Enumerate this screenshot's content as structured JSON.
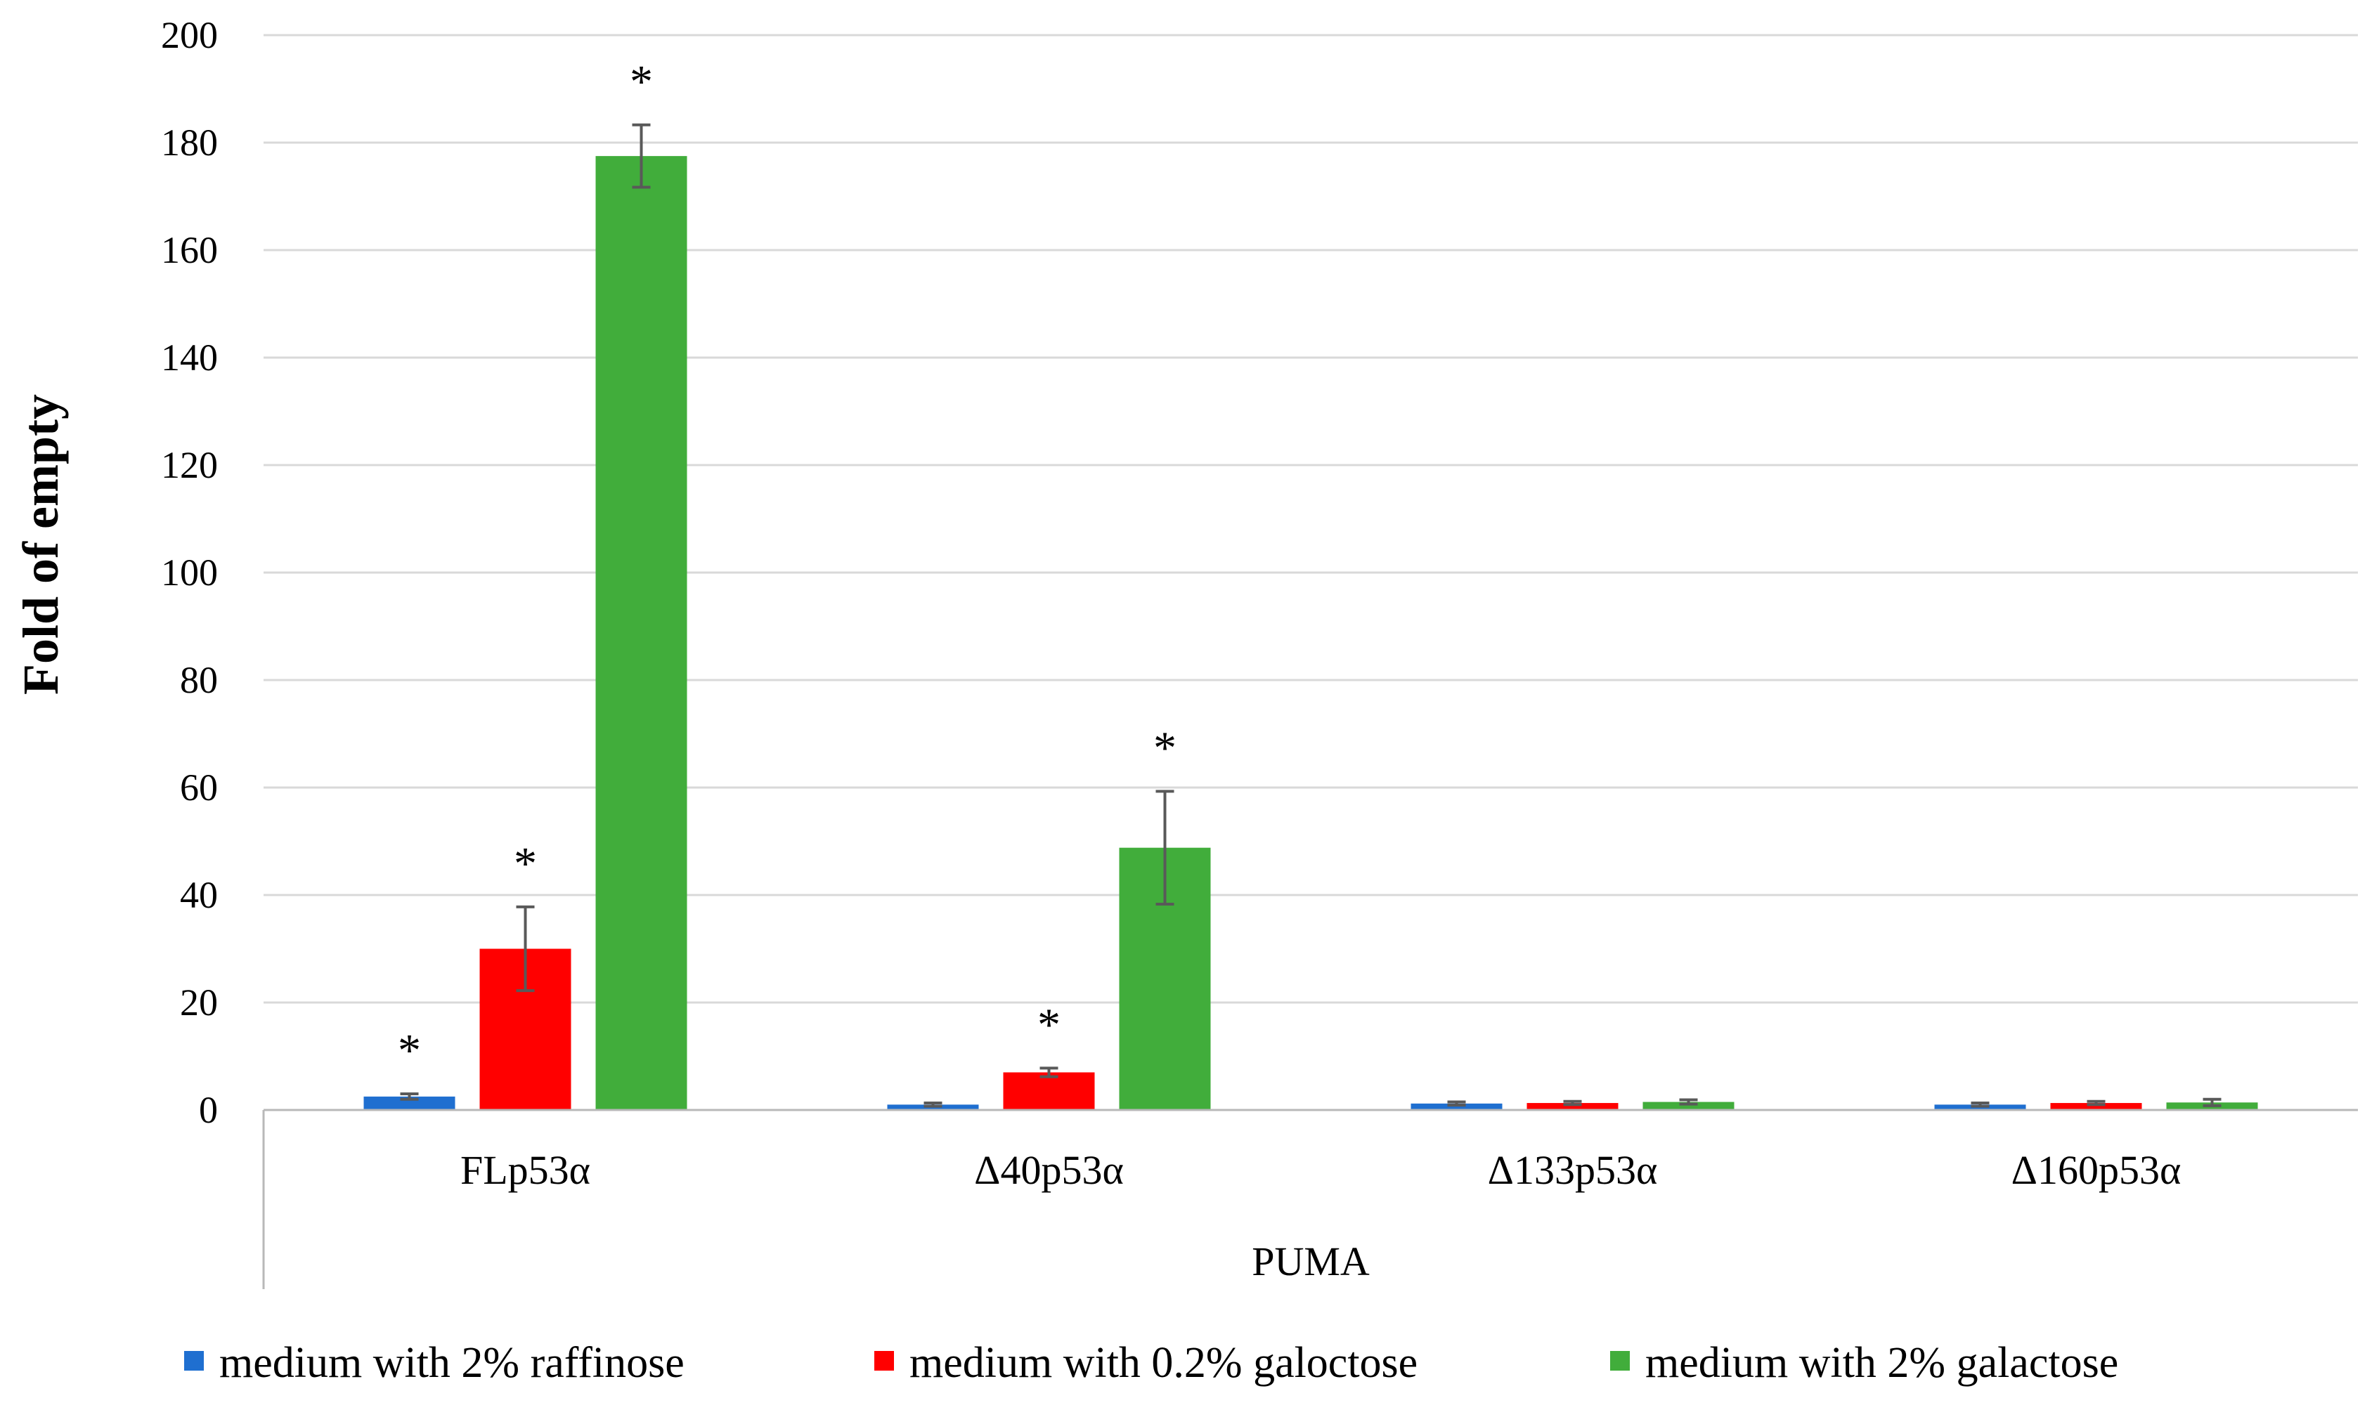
{
  "chart_data": {
    "type": "bar",
    "title": "",
    "ylabel": "Fold of empty",
    "xlabel": "PUMA",
    "ylim": [
      0,
      200
    ],
    "yticks": [
      "0",
      "20",
      "40",
      "60",
      "80",
      "100",
      "120",
      "140",
      "160",
      "180",
      "200"
    ],
    "grid": true,
    "legend_position": "bottom",
    "categories": [
      "FLp53α",
      "Δ40p53α",
      "Δ133p53α",
      "Δ160p53α"
    ],
    "series": [
      {
        "name": "medium with 2% raffinose",
        "color": "#1f6fd0",
        "values": [
          2.5,
          1.0,
          1.2,
          1.0
        ],
        "errors": [
          0.5,
          0.3,
          0.3,
          0.3
        ],
        "significant": [
          true,
          false,
          false,
          false
        ]
      },
      {
        "name": "medium with 0.2% galoctose",
        "color": "#ff0000",
        "values": [
          30,
          7,
          1.3,
          1.3
        ],
        "errors": [
          7.8,
          0.8,
          0.3,
          0.3
        ],
        "significant": [
          true,
          true,
          false,
          false
        ]
      },
      {
        "name": "medium with 2% galactose",
        "color": "#41ad3b",
        "values": [
          177.5,
          48.8,
          1.5,
          1.4
        ],
        "errors": [
          5.8,
          10.5,
          0.4,
          0.6
        ],
        "significant": [
          true,
          true,
          false,
          false
        ]
      }
    ],
    "annotation_symbol": "*"
  }
}
